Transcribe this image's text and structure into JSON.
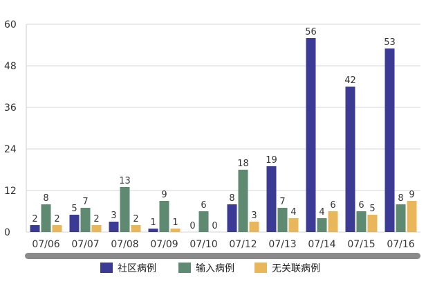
{
  "chart_data": {
    "type": "bar",
    "title": "",
    "xlabel": "",
    "ylabel": "",
    "categories": [
      "07/06",
      "07/07",
      "07/08",
      "07/09",
      "07/10",
      "07/12",
      "07/13",
      "07/14",
      "07/15",
      "07/16"
    ],
    "ylim": [
      0,
      60
    ],
    "yticks": [
      0,
      12,
      24,
      36,
      48,
      60
    ],
    "grid": true,
    "legend_position": "bottom",
    "series": [
      {
        "name": "社区病例",
        "color": "#3b3b96",
        "values": [
          2,
          5,
          3,
          1,
          0,
          8,
          19,
          56,
          42,
          53
        ]
      },
      {
        "name": "输入病例",
        "color": "#5e8a72",
        "values": [
          8,
          7,
          13,
          9,
          6,
          18,
          7,
          4,
          6,
          8
        ]
      },
      {
        "name": "无关联病例",
        "color": "#e9b65a",
        "values": [
          2,
          2,
          2,
          1,
          0,
          3,
          4,
          6,
          5,
          9
        ]
      }
    ]
  }
}
